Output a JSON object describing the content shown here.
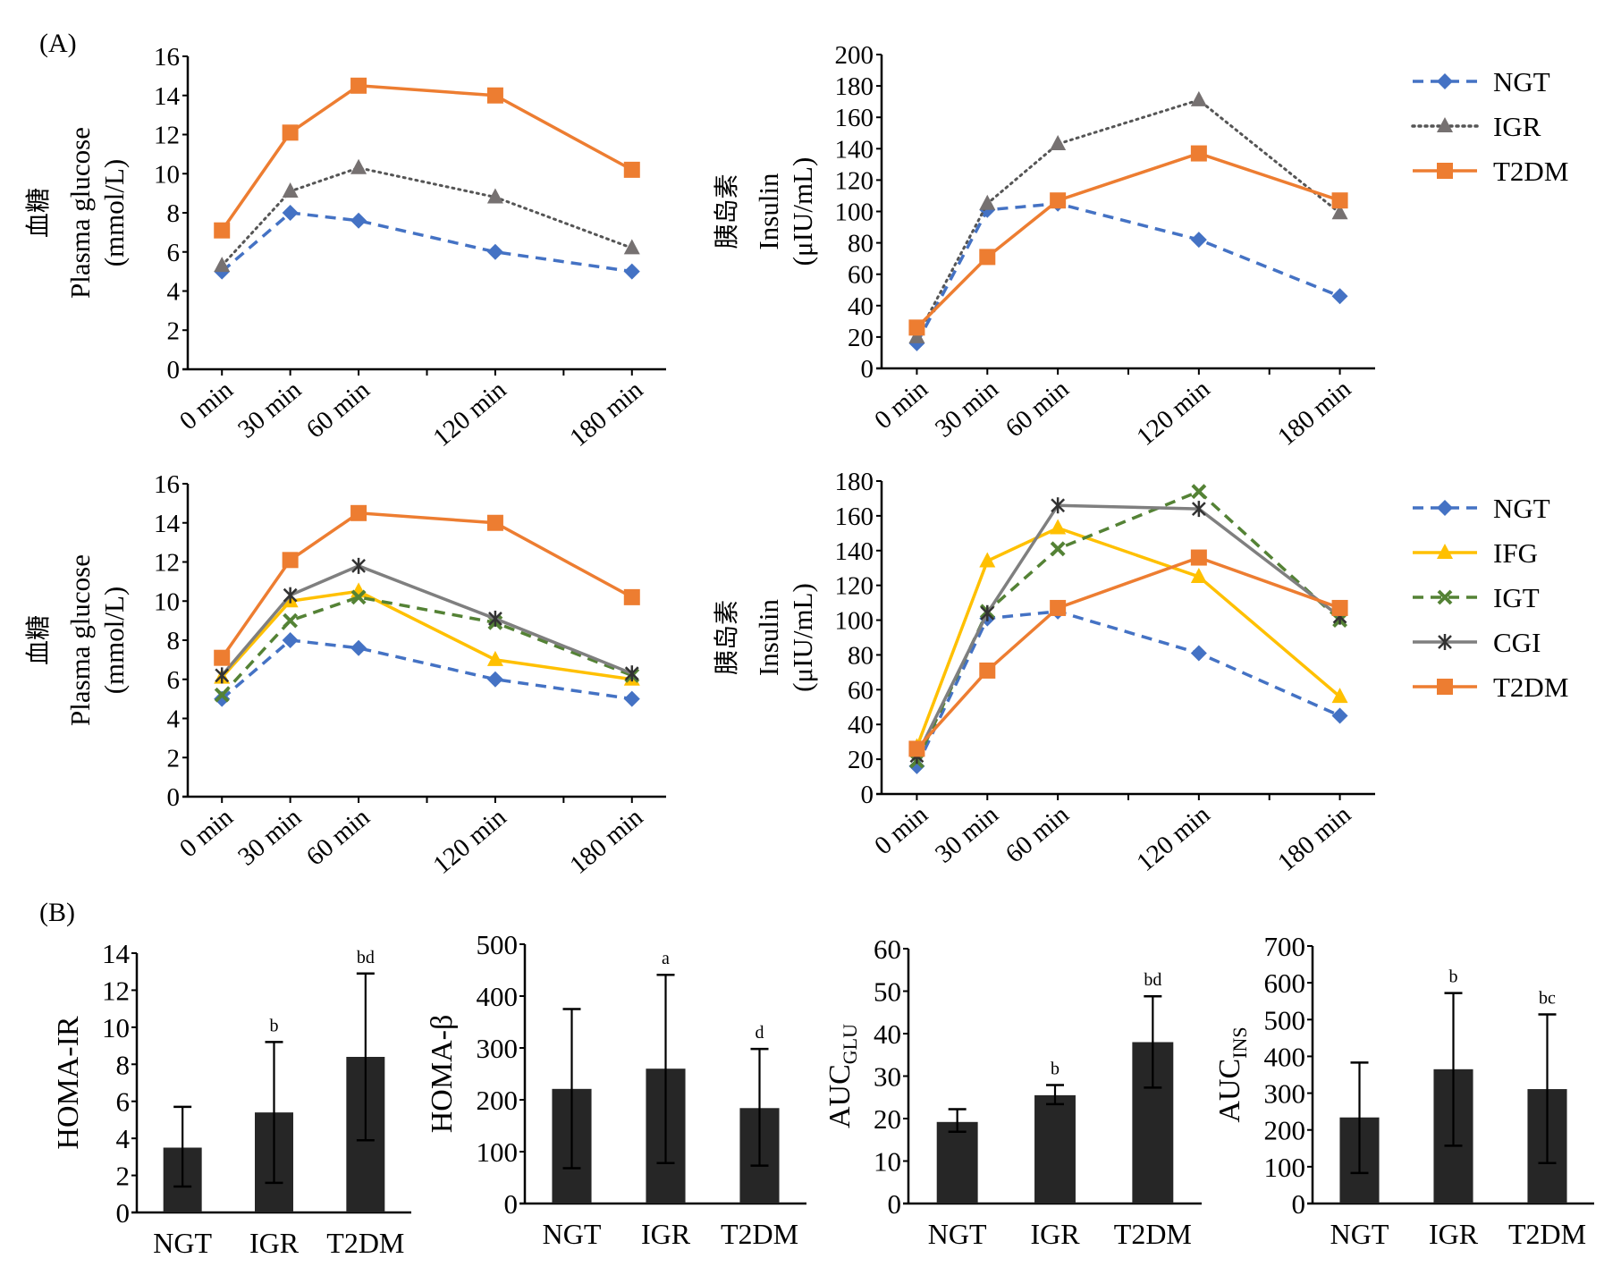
{
  "figure": {
    "panel_labels": [
      "(A)",
      "(B)"
    ]
  },
  "chart_data": [
    {
      "id": "glucose-3group",
      "type": "line",
      "panel": "A",
      "title": "",
      "xlabel": "",
      "ylabel_lines": [
        "血糖",
        "Plasma glucose",
        "(mmol/L)"
      ],
      "x": [
        0,
        30,
        60,
        120,
        180
      ],
      "x_tick_positions": [
        0,
        30,
        60,
        90,
        120,
        150,
        180
      ],
      "categories": [
        "0 min",
        "30 min",
        "60 min",
        "120 min",
        "180 min"
      ],
      "xlim": [
        -15,
        195
      ],
      "ylim": [
        0,
        16
      ],
      "yticks": [
        0,
        2,
        4,
        6,
        8,
        10,
        12,
        14,
        16
      ],
      "grid": false,
      "legend": "none",
      "series": [
        {
          "name": "NGT",
          "color": "#4472C4",
          "dash": "dashed",
          "marker": "diamond",
          "values": [
            5.0,
            8.0,
            7.6,
            6.0,
            5.0
          ]
        },
        {
          "name": "IGR",
          "color": "#767171",
          "dash": "dotted",
          "marker": "triangle",
          "values": [
            5.3,
            9.1,
            10.3,
            8.8,
            6.2
          ]
        },
        {
          "name": "T2DM",
          "color": "#ED7D31",
          "dash": "solid",
          "marker": "square",
          "values": [
            7.1,
            12.1,
            14.5,
            14.0,
            10.2
          ]
        }
      ]
    },
    {
      "id": "insulin-3group",
      "type": "line",
      "panel": "A",
      "title": "",
      "xlabel": "",
      "ylabel_lines": [
        "胰岛素",
        "Insulin",
        "(μIU/mL)"
      ],
      "x": [
        0,
        30,
        60,
        120,
        180
      ],
      "x_tick_positions": [
        0,
        30,
        60,
        90,
        120,
        150,
        180
      ],
      "categories": [
        "0 min",
        "30 min",
        "60 min",
        "120 min",
        "180 min"
      ],
      "xlim": [
        -15,
        195
      ],
      "ylim": [
        0,
        200
      ],
      "yticks": [
        0,
        20,
        40,
        60,
        80,
        100,
        120,
        140,
        160,
        180,
        200
      ],
      "grid": false,
      "legend": "right",
      "series": [
        {
          "name": "NGT",
          "color": "#4472C4",
          "dash": "dashed",
          "marker": "diamond",
          "values": [
            16,
            101,
            105,
            82,
            46
          ]
        },
        {
          "name": "IGR",
          "color": "#767171",
          "dash": "dotted",
          "marker": "triangle",
          "values": [
            20,
            105,
            143,
            171,
            99
          ]
        },
        {
          "name": "T2DM",
          "color": "#ED7D31",
          "dash": "solid",
          "marker": "square",
          "values": [
            26,
            71,
            107,
            137,
            107
          ]
        }
      ]
    },
    {
      "id": "glucose-5group",
      "type": "line",
      "panel": "A",
      "title": "",
      "xlabel": "",
      "ylabel_lines": [
        "血糖",
        "Plasma glucose",
        "(mmol/L)"
      ],
      "x": [
        0,
        30,
        60,
        120,
        180
      ],
      "x_tick_positions": [
        0,
        30,
        60,
        90,
        120,
        150,
        180
      ],
      "categories": [
        "0 min",
        "30 min",
        "60 min",
        "120 min",
        "180 min"
      ],
      "xlim": [
        -15,
        195
      ],
      "ylim": [
        0,
        16
      ],
      "yticks": [
        0,
        2,
        4,
        6,
        8,
        10,
        12,
        14,
        16
      ],
      "grid": false,
      "legend": "none",
      "series": [
        {
          "name": "NGT",
          "color": "#4472C4",
          "dash": "dashed",
          "marker": "diamond",
          "values": [
            5.0,
            8.0,
            7.6,
            6.0,
            5.0
          ]
        },
        {
          "name": "IFG",
          "color": "#FFC000",
          "dash": "solid",
          "marker": "triangle",
          "values": [
            6.1,
            10.0,
            10.5,
            7.0,
            6.0
          ]
        },
        {
          "name": "IGT",
          "color": "#548235",
          "dash": "dashed",
          "marker": "x",
          "values": [
            5.2,
            9.0,
            10.2,
            8.9,
            6.2
          ]
        },
        {
          "name": "CGI",
          "color": "#7F7F7F",
          "dash": "solid",
          "marker": "star",
          "values": [
            6.2,
            10.3,
            11.8,
            9.1,
            6.3
          ]
        },
        {
          "name": "T2DM",
          "color": "#ED7D31",
          "dash": "solid",
          "marker": "square",
          "values": [
            7.1,
            12.1,
            14.5,
            14.0,
            10.2
          ]
        }
      ]
    },
    {
      "id": "insulin-5group",
      "type": "line",
      "panel": "A",
      "title": "",
      "xlabel": "",
      "ylabel_lines": [
        "胰岛素",
        "Insulin",
        "(μIU/mL)"
      ],
      "x": [
        0,
        30,
        60,
        120,
        180
      ],
      "x_tick_positions": [
        0,
        30,
        60,
        90,
        120,
        150,
        180
      ],
      "categories": [
        "0 min",
        "30 min",
        "60 min",
        "120 min",
        "180 min"
      ],
      "xlim": [
        -15,
        195
      ],
      "ylim": [
        0,
        180
      ],
      "yticks": [
        0,
        20,
        40,
        60,
        80,
        100,
        120,
        140,
        160,
        180
      ],
      "grid": false,
      "legend": "right",
      "series": [
        {
          "name": "NGT",
          "color": "#4472C4",
          "dash": "dashed",
          "marker": "diamond",
          "values": [
            16,
            101,
            105,
            81,
            45
          ]
        },
        {
          "name": "IFG",
          "color": "#FFC000",
          "dash": "solid",
          "marker": "triangle",
          "values": [
            27,
            134,
            153,
            125,
            56
          ]
        },
        {
          "name": "IGT",
          "color": "#548235",
          "dash": "dashed",
          "marker": "x",
          "values": [
            19,
            105,
            141,
            174,
            100
          ]
        },
        {
          "name": "CGI",
          "color": "#7F7F7F",
          "dash": "solid",
          "marker": "star",
          "values": [
            22,
            104,
            166,
            164,
            102
          ]
        },
        {
          "name": "T2DM",
          "color": "#ED7D31",
          "dash": "solid",
          "marker": "square",
          "values": [
            26,
            71,
            107,
            136,
            107
          ]
        }
      ]
    },
    {
      "id": "homa-ir",
      "type": "bar",
      "panel": "B",
      "title": "",
      "xlabel": "",
      "ylabel": "HOMA-IR",
      "categories": [
        "NGT",
        "IGR",
        "T2DM"
      ],
      "values": [
        3.5,
        5.4,
        8.4
      ],
      "error_upper": [
        5.7,
        9.2,
        12.9
      ],
      "error_lower": [
        1.4,
        1.6,
        3.9
      ],
      "annotations": [
        "",
        "b",
        "bd"
      ],
      "ylim": [
        0,
        14
      ],
      "yticks": [
        0,
        2,
        4,
        6,
        8,
        10,
        12,
        14
      ],
      "bar_color": "#262626",
      "grid": false,
      "legend": "none"
    },
    {
      "id": "homa-beta",
      "type": "bar",
      "panel": "B",
      "title": "",
      "xlabel": "",
      "ylabel": "HOMA-β",
      "categories": [
        "NGT",
        "IGR",
        "T2DM"
      ],
      "values": [
        221,
        260,
        184
      ],
      "error_upper": [
        375,
        441,
        298
      ],
      "error_lower": [
        68,
        78,
        73
      ],
      "annotations": [
        "",
        "a",
        "d"
      ],
      "ylim": [
        0,
        500
      ],
      "yticks": [
        0,
        100,
        200,
        300,
        400,
        500
      ],
      "bar_color": "#262626",
      "grid": false,
      "legend": "none"
    },
    {
      "id": "auc-glu",
      "type": "bar",
      "panel": "B",
      "title": "",
      "xlabel": "",
      "ylabel": "AUC",
      "ylabel_sub": "GLU",
      "categories": [
        "NGT",
        "IGR",
        "T2DM"
      ],
      "values": [
        19.2,
        25.5,
        38.0
      ],
      "error_upper": [
        22.2,
        27.9,
        48.8
      ],
      "error_lower": [
        16.9,
        23.4,
        27.3
      ],
      "annotations": [
        "",
        "b",
        "bd"
      ],
      "ylim": [
        0,
        60
      ],
      "yticks": [
        0,
        10,
        20,
        30,
        40,
        50,
        60
      ],
      "bar_color": "#262626",
      "grid": false,
      "legend": "none"
    },
    {
      "id": "auc-ins",
      "type": "bar",
      "panel": "B",
      "title": "",
      "xlabel": "",
      "ylabel": "AUC",
      "ylabel_sub": "INS",
      "categories": [
        "NGT",
        "IGR",
        "T2DM"
      ],
      "values": [
        234,
        365,
        311
      ],
      "error_upper": [
        383,
        572,
        514
      ],
      "error_lower": [
        83,
        157,
        110
      ],
      "annotations": [
        "",
        "b",
        "bc"
      ],
      "ylim": [
        0,
        700
      ],
      "yticks": [
        0,
        100,
        200,
        300,
        400,
        500,
        600,
        700
      ],
      "bar_color": "#262626",
      "grid": false,
      "legend": "none"
    }
  ]
}
